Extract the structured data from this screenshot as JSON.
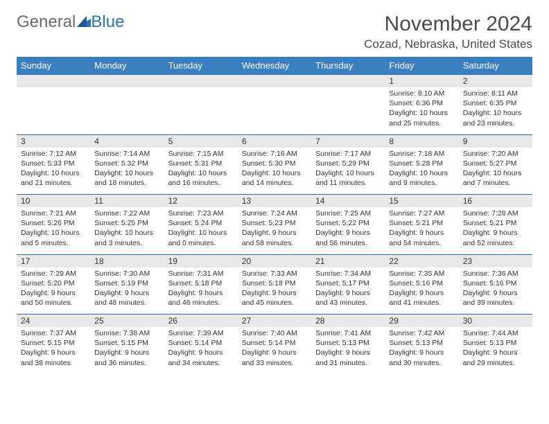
{
  "logo": {
    "part1": "General",
    "part2": "Blue"
  },
  "title": "November 2024",
  "location": "Cozad, Nebraska, United States",
  "weekdays": [
    "Sunday",
    "Monday",
    "Tuesday",
    "Wednesday",
    "Thursday",
    "Friday",
    "Saturday"
  ],
  "colors": {
    "header_bg": "#3a7fc0",
    "header_text": "#ffffff",
    "daynum_bg": "#e8e8e8",
    "border": "#2a6db0",
    "logo_gray": "#6a6a6a",
    "logo_blue": "#2a73b8"
  },
  "weeks": [
    [
      null,
      null,
      null,
      null,
      null,
      {
        "n": "1",
        "sunrise": "Sunrise: 8:10 AM",
        "sunset": "Sunset: 6:36 PM",
        "daylight": "Daylight: 10 hours and 25 minutes."
      },
      {
        "n": "2",
        "sunrise": "Sunrise: 8:11 AM",
        "sunset": "Sunset: 6:35 PM",
        "daylight": "Daylight: 10 hours and 23 minutes."
      }
    ],
    [
      {
        "n": "3",
        "sunrise": "Sunrise: 7:12 AM",
        "sunset": "Sunset: 5:33 PM",
        "daylight": "Daylight: 10 hours and 21 minutes."
      },
      {
        "n": "4",
        "sunrise": "Sunrise: 7:14 AM",
        "sunset": "Sunset: 5:32 PM",
        "daylight": "Daylight: 10 hours and 18 minutes."
      },
      {
        "n": "5",
        "sunrise": "Sunrise: 7:15 AM",
        "sunset": "Sunset: 5:31 PM",
        "daylight": "Daylight: 10 hours and 16 minutes."
      },
      {
        "n": "6",
        "sunrise": "Sunrise: 7:16 AM",
        "sunset": "Sunset: 5:30 PM",
        "daylight": "Daylight: 10 hours and 14 minutes."
      },
      {
        "n": "7",
        "sunrise": "Sunrise: 7:17 AM",
        "sunset": "Sunset: 5:29 PM",
        "daylight": "Daylight: 10 hours and 11 minutes."
      },
      {
        "n": "8",
        "sunrise": "Sunrise: 7:18 AM",
        "sunset": "Sunset: 5:28 PM",
        "daylight": "Daylight: 10 hours and 9 minutes."
      },
      {
        "n": "9",
        "sunrise": "Sunrise: 7:20 AM",
        "sunset": "Sunset: 5:27 PM",
        "daylight": "Daylight: 10 hours and 7 minutes."
      }
    ],
    [
      {
        "n": "10",
        "sunrise": "Sunrise: 7:21 AM",
        "sunset": "Sunset: 5:26 PM",
        "daylight": "Daylight: 10 hours and 5 minutes."
      },
      {
        "n": "11",
        "sunrise": "Sunrise: 7:22 AM",
        "sunset": "Sunset: 5:25 PM",
        "daylight": "Daylight: 10 hours and 3 minutes."
      },
      {
        "n": "12",
        "sunrise": "Sunrise: 7:23 AM",
        "sunset": "Sunset: 5:24 PM",
        "daylight": "Daylight: 10 hours and 0 minutes."
      },
      {
        "n": "13",
        "sunrise": "Sunrise: 7:24 AM",
        "sunset": "Sunset: 5:23 PM",
        "daylight": "Daylight: 9 hours and 58 minutes."
      },
      {
        "n": "14",
        "sunrise": "Sunrise: 7:25 AM",
        "sunset": "Sunset: 5:22 PM",
        "daylight": "Daylight: 9 hours and 56 minutes."
      },
      {
        "n": "15",
        "sunrise": "Sunrise: 7:27 AM",
        "sunset": "Sunset: 5:21 PM",
        "daylight": "Daylight: 9 hours and 54 minutes."
      },
      {
        "n": "16",
        "sunrise": "Sunrise: 7:28 AM",
        "sunset": "Sunset: 5:21 PM",
        "daylight": "Daylight: 9 hours and 52 minutes."
      }
    ],
    [
      {
        "n": "17",
        "sunrise": "Sunrise: 7:29 AM",
        "sunset": "Sunset: 5:20 PM",
        "daylight": "Daylight: 9 hours and 50 minutes."
      },
      {
        "n": "18",
        "sunrise": "Sunrise: 7:30 AM",
        "sunset": "Sunset: 5:19 PM",
        "daylight": "Daylight: 9 hours and 48 minutes."
      },
      {
        "n": "19",
        "sunrise": "Sunrise: 7:31 AM",
        "sunset": "Sunset: 5:18 PM",
        "daylight": "Daylight: 9 hours and 46 minutes."
      },
      {
        "n": "20",
        "sunrise": "Sunrise: 7:33 AM",
        "sunset": "Sunset: 5:18 PM",
        "daylight": "Daylight: 9 hours and 45 minutes."
      },
      {
        "n": "21",
        "sunrise": "Sunrise: 7:34 AM",
        "sunset": "Sunset: 5:17 PM",
        "daylight": "Daylight: 9 hours and 43 minutes."
      },
      {
        "n": "22",
        "sunrise": "Sunrise: 7:35 AM",
        "sunset": "Sunset: 5:16 PM",
        "daylight": "Daylight: 9 hours and 41 minutes."
      },
      {
        "n": "23",
        "sunrise": "Sunrise: 7:36 AM",
        "sunset": "Sunset: 5:16 PM",
        "daylight": "Daylight: 9 hours and 39 minutes."
      }
    ],
    [
      {
        "n": "24",
        "sunrise": "Sunrise: 7:37 AM",
        "sunset": "Sunset: 5:15 PM",
        "daylight": "Daylight: 9 hours and 38 minutes."
      },
      {
        "n": "25",
        "sunrise": "Sunrise: 7:38 AM",
        "sunset": "Sunset: 5:15 PM",
        "daylight": "Daylight: 9 hours and 36 minutes."
      },
      {
        "n": "26",
        "sunrise": "Sunrise: 7:39 AM",
        "sunset": "Sunset: 5:14 PM",
        "daylight": "Daylight: 9 hours and 34 minutes."
      },
      {
        "n": "27",
        "sunrise": "Sunrise: 7:40 AM",
        "sunset": "Sunset: 5:14 PM",
        "daylight": "Daylight: 9 hours and 33 minutes."
      },
      {
        "n": "28",
        "sunrise": "Sunrise: 7:41 AM",
        "sunset": "Sunset: 5:13 PM",
        "daylight": "Daylight: 9 hours and 31 minutes."
      },
      {
        "n": "29",
        "sunrise": "Sunrise: 7:42 AM",
        "sunset": "Sunset: 5:13 PM",
        "daylight": "Daylight: 9 hours and 30 minutes."
      },
      {
        "n": "30",
        "sunrise": "Sunrise: 7:44 AM",
        "sunset": "Sunset: 5:13 PM",
        "daylight": "Daylight: 9 hours and 29 minutes."
      }
    ]
  ]
}
